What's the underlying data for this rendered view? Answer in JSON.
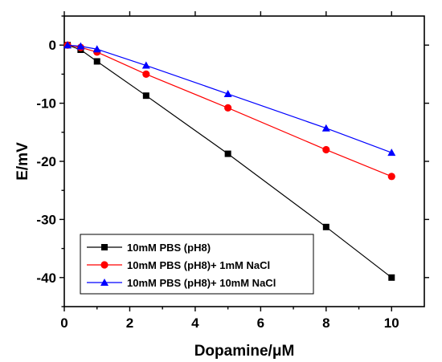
{
  "chart_data": {
    "type": "line",
    "xlabel": "Dopamine/μM",
    "ylabel": "E/mV",
    "xlim": [
      0,
      11
    ],
    "ylim": [
      -45,
      5
    ],
    "xticks": [
      0,
      2,
      4,
      6,
      8,
      10
    ],
    "yticks": [
      0,
      -10,
      -20,
      -30,
      -40
    ],
    "legend_position": "bottom-left",
    "grid": false,
    "series": [
      {
        "name": "10mM PBS (pH8)",
        "color": "#000000",
        "marker": "square",
        "x": [
          0.1,
          0.5,
          1,
          2.5,
          5,
          8,
          10
        ],
        "y": [
          0,
          -0.8,
          -2.8,
          -8.7,
          -18.7,
          -31.3,
          -40.0
        ]
      },
      {
        "name": "10mM PBS (pH8)+ 1mM NaCl",
        "color": "#ff0000",
        "marker": "circle",
        "x": [
          0.1,
          0.5,
          1,
          2.5,
          5,
          8,
          10
        ],
        "y": [
          0,
          -0.4,
          -1.2,
          -5.0,
          -10.8,
          -18.0,
          -22.6
        ]
      },
      {
        "name": "10mM PBS (pH8)+ 10mM NaCl",
        "color": "#0000ff",
        "marker": "triangle",
        "x": [
          0.1,
          0.5,
          1,
          2.5,
          5,
          8,
          10
        ],
        "y": [
          0,
          -0.2,
          -0.7,
          -3.5,
          -8.4,
          -14.3,
          -18.5
        ]
      }
    ]
  }
}
